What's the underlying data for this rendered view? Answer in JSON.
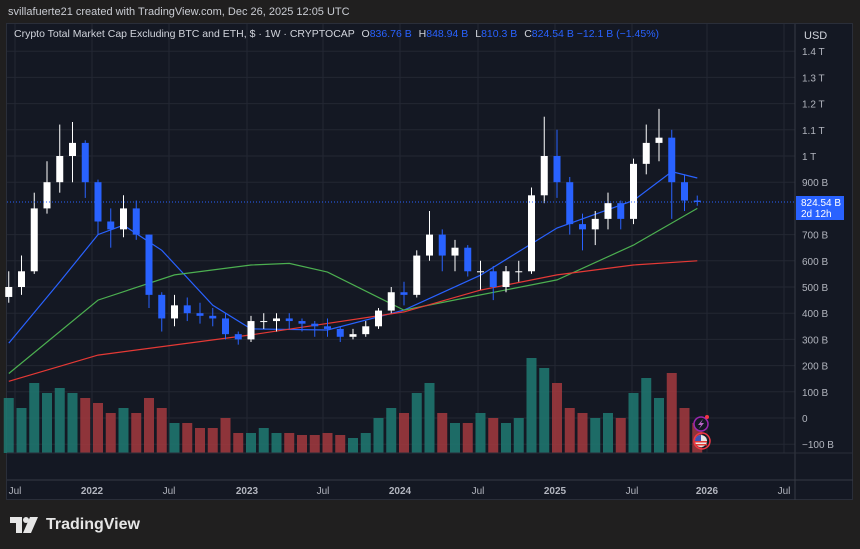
{
  "header": {
    "credit": "svillafuerte21 created with TradingView.com, Dec 26, 2025 12:05 UTC"
  },
  "legend": {
    "symbol": "Crypto Total Market Cap Excluding BTC and ETH, $ · 1W · CRYPTOCAP",
    "o_label": "O",
    "open": "836.76 B",
    "h_label": "H",
    "high": "848.94 B",
    "l_label": "L",
    "low": "810.3 B",
    "c_label": "C",
    "close": "824.54 B",
    "change": "−12.1 B (−1.45%)"
  },
  "price_axis": {
    "currency": "USD",
    "ticks": [
      "1.4 T",
      "1.3 T",
      "1.2 T",
      "1.1 T",
      "1 T",
      "900 B",
      "700 B",
      "600 B",
      "500 B",
      "400 B",
      "300 B",
      "200 B",
      "100 B",
      "0",
      "−100 B"
    ],
    "last_price": "824.54 B",
    "countdown": "2d 12h"
  },
  "time_axis": {
    "ticks": [
      "Jul",
      "2022",
      "Jul",
      "2023",
      "Jul",
      "2024",
      "Jul",
      "2025",
      "Jul",
      "2026",
      "Jul"
    ]
  },
  "brand": {
    "name": "TradingView"
  },
  "colors": {
    "background": "#141823",
    "up": "#ffffff",
    "down": "#2962ff",
    "ma_blue": "#2962ff",
    "ma_green": "#4caf50",
    "ma_red": "#e53935",
    "vol_up": "#1f7a72",
    "vol_down": "#a33a3e"
  },
  "chart_data": {
    "type": "candlestick",
    "unit": "B USD",
    "ylim": [
      -130,
      1500
    ],
    "months": [
      "2021-06",
      "2021-07",
      "2021-08",
      "2021-09",
      "2021-10",
      "2021-11",
      "2021-12",
      "2022-01",
      "2022-02",
      "2022-03",
      "2022-04",
      "2022-05",
      "2022-06",
      "2022-07",
      "2022-08",
      "2022-09",
      "2022-10",
      "2022-11",
      "2022-12",
      "2023-01",
      "2023-02",
      "2023-03",
      "2023-04",
      "2023-05",
      "2023-06",
      "2023-07",
      "2023-08",
      "2023-09",
      "2023-10",
      "2023-11",
      "2023-12",
      "2024-01",
      "2024-02",
      "2024-03",
      "2024-04",
      "2024-05",
      "2024-06",
      "2024-07",
      "2024-08",
      "2024-09",
      "2024-10",
      "2024-11",
      "2024-12",
      "2025-01",
      "2025-02",
      "2025-03",
      "2025-04",
      "2025-05",
      "2025-06",
      "2025-07",
      "2025-08",
      "2025-09",
      "2025-10",
      "2025-11",
      "2025-12"
    ],
    "close": [
      500,
      560,
      800,
      900,
      1000,
      1050,
      900,
      750,
      720,
      800,
      700,
      470,
      380,
      430,
      400,
      390,
      380,
      320,
      300,
      370,
      370,
      380,
      370,
      360,
      350,
      340,
      310,
      320,
      350,
      410,
      480,
      470,
      620,
      700,
      620,
      650,
      560,
      560,
      500,
      560,
      560,
      850,
      1000,
      900,
      740,
      720,
      760,
      820,
      760,
      970,
      1050,
      1070,
      900,
      830,
      824.54
    ],
    "high": [
      560,
      620,
      860,
      980,
      1120,
      1130,
      1060,
      910,
      800,
      850,
      830,
      700,
      480,
      470,
      460,
      440,
      420,
      400,
      330,
      390,
      400,
      400,
      400,
      380,
      370,
      380,
      350,
      340,
      370,
      420,
      500,
      520,
      640,
      790,
      720,
      680,
      660,
      600,
      580,
      580,
      600,
      880,
      1150,
      1100,
      920,
      780,
      790,
      860,
      830,
      990,
      1120,
      1180,
      1100,
      930,
      849
    ],
    "low": [
      440,
      470,
      550,
      780,
      860,
      900,
      840,
      700,
      650,
      690,
      680,
      420,
      330,
      350,
      370,
      360,
      350,
      300,
      280,
      290,
      340,
      330,
      340,
      330,
      310,
      310,
      290,
      300,
      310,
      340,
      400,
      430,
      460,
      600,
      560,
      560,
      540,
      490,
      450,
      480,
      520,
      550,
      820,
      840,
      700,
      640,
      660,
      720,
      720,
      740,
      930,
      980,
      760,
      790,
      810
    ],
    "volume": [
      55,
      45,
      70,
      60,
      65,
      60,
      55,
      50,
      40,
      45,
      40,
      55,
      45,
      30,
      30,
      25,
      25,
      35,
      20,
      20,
      25,
      20,
      20,
      18,
      18,
      20,
      18,
      15,
      20,
      35,
      45,
      40,
      60,
      70,
      40,
      30,
      30,
      40,
      35,
      30,
      35,
      95,
      85,
      70,
      45,
      40,
      35,
      40,
      35,
      60,
      75,
      55,
      80,
      45,
      30
    ],
    "moving_averages": [
      {
        "color": "blue",
        "points": [
          [
            "2021-06",
            286
          ],
          [
            "2021-10",
            520
          ],
          [
            "2022-01",
            700
          ],
          [
            "2022-03",
            736
          ],
          [
            "2022-06",
            640
          ],
          [
            "2022-10",
            430
          ],
          [
            "2023-01",
            340
          ],
          [
            "2023-07",
            336
          ],
          [
            "2024-01",
            412
          ],
          [
            "2024-07",
            545
          ],
          [
            "2025-01",
            725
          ],
          [
            "2025-07",
            830
          ],
          [
            "2025-10",
            940
          ],
          [
            "2025-12",
            916
          ]
        ]
      },
      {
        "color": "green",
        "points": [
          [
            "2021-06",
            170
          ],
          [
            "2022-01",
            450
          ],
          [
            "2022-07",
            546
          ],
          [
            "2023-01",
            584
          ],
          [
            "2023-04",
            590
          ],
          [
            "2023-07",
            557
          ],
          [
            "2024-01",
            412
          ],
          [
            "2024-07",
            470
          ],
          [
            "2025-01",
            527
          ],
          [
            "2025-07",
            660
          ],
          [
            "2025-12",
            800
          ]
        ]
      },
      {
        "color": "red",
        "points": [
          [
            "2021-06",
            140
          ],
          [
            "2022-01",
            240
          ],
          [
            "2023-01",
            317
          ],
          [
            "2024-01",
            405
          ],
          [
            "2024-07",
            488
          ],
          [
            "2025-01",
            546
          ],
          [
            "2025-07",
            584
          ],
          [
            "2025-12",
            600
          ]
        ]
      }
    ]
  }
}
